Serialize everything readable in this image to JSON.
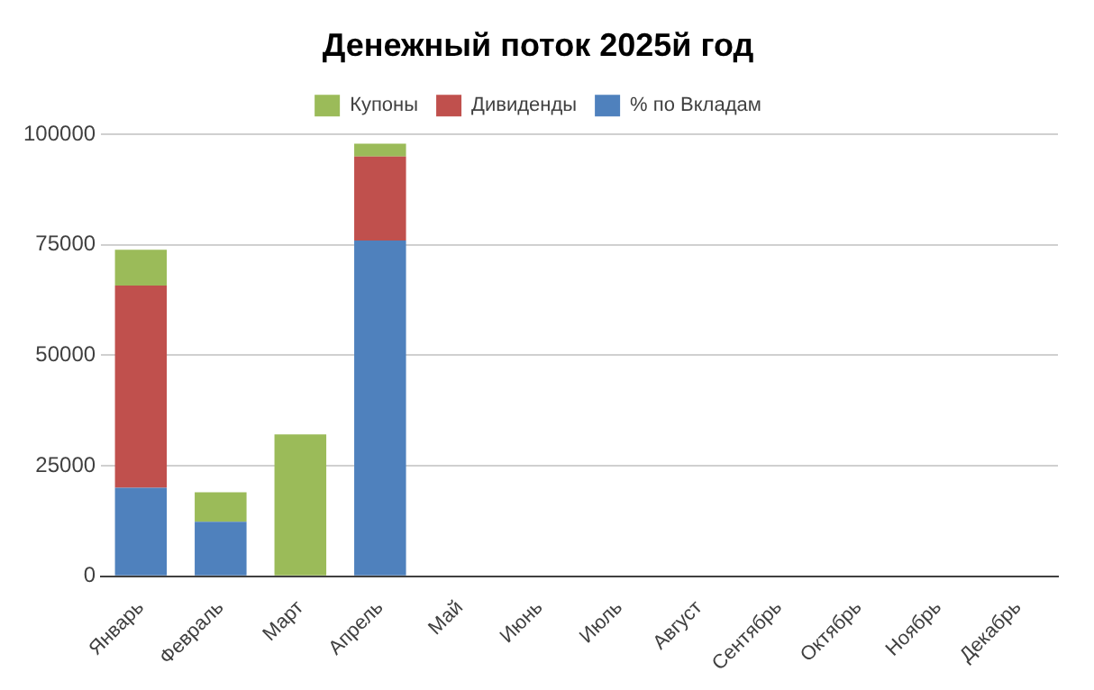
{
  "chart_data": {
    "type": "bar",
    "title": "Денежный поток 2025й год",
    "categories": [
      "Январь",
      "Февраль",
      "Март",
      "Апрель",
      "Май",
      "Июнь",
      "Июль",
      "Август",
      "Сентябрь",
      "Октябрь",
      "Ноябрь",
      "Декабрь"
    ],
    "stacked": true,
    "legend": "top",
    "grid": "y",
    "ylim": [
      0,
      100000
    ],
    "yticks": [
      0,
      25000,
      50000,
      75000,
      100000
    ],
    "series": [
      {
        "name": "% по Вкладам",
        "color": "#4f81bd",
        "values": [
          20000,
          12300,
          null,
          76000,
          null,
          null,
          null,
          null,
          null,
          null,
          null,
          null
        ]
      },
      {
        "name": "Дивиденды",
        "color": "#c0504d",
        "values": [
          45800,
          null,
          null,
          19000,
          null,
          null,
          null,
          null,
          null,
          null,
          null,
          null
        ]
      },
      {
        "name": "Купоны",
        "color": "#9bbb59",
        "values": [
          8100,
          6700,
          32100,
          2900,
          null,
          null,
          null,
          null,
          null,
          null,
          null,
          null
        ]
      }
    ]
  }
}
